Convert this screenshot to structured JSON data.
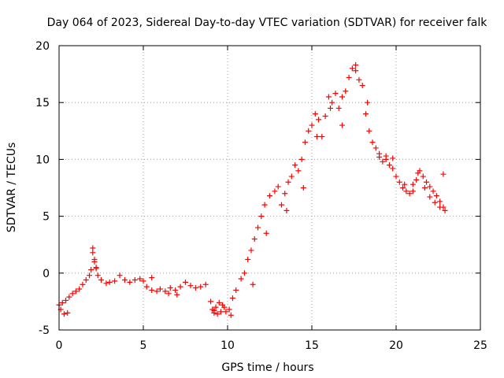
{
  "chart_data": {
    "type": "scatter",
    "title": "Day 064 of 2023, Sidereal Day-to-day VTEC variation (SDTVAR) for receiver falk",
    "xlabel": "GPS time / hours",
    "ylabel": "SDTVAR / TECUs",
    "xlim": [
      0,
      25
    ],
    "ylim": [
      -5,
      20
    ],
    "xticks": [
      0,
      5,
      10,
      15,
      20,
      25
    ],
    "yticks": [
      -5,
      0,
      5,
      10,
      15,
      20
    ],
    "grid": true,
    "marker": "+",
    "series": [
      {
        "name": "SDTVAR",
        "color": "#ff0000",
        "x": [
          0.0,
          0.2,
          0.4,
          0.6,
          0.8,
          1.0,
          1.2,
          1.4,
          1.6,
          1.8,
          1.9,
          2.0,
          2.1,
          2.2,
          2.3,
          2.5,
          2.8,
          3.0,
          3.3,
          3.6,
          3.9,
          4.2,
          4.5,
          4.8,
          5.0,
          5.2,
          5.5,
          5.8,
          6.0,
          6.3,
          6.6,
          6.9,
          7.2,
          7.5,
          7.8,
          8.1,
          8.4,
          8.7,
          9.0,
          9.1,
          9.2,
          9.3,
          9.5,
          9.7,
          9.9,
          10.1,
          10.3,
          10.5,
          10.8,
          11.0,
          11.2,
          11.4,
          11.6,
          11.8,
          12.0,
          12.2,
          12.5,
          12.8,
          13.0,
          13.2,
          13.4,
          13.6,
          13.8,
          14.0,
          14.2,
          14.4,
          14.6,
          14.8,
          15.0,
          15.2,
          15.4,
          15.6,
          15.8,
          16.0,
          16.2,
          16.4,
          16.6,
          16.8,
          17.0,
          17.2,
          17.4,
          17.6,
          17.8,
          18.0,
          18.2,
          18.4,
          18.6,
          18.8,
          19.0,
          19.2,
          19.4,
          19.6,
          19.8,
          20.0,
          20.2,
          20.4,
          20.6,
          20.8,
          21.0,
          21.2,
          21.4,
          21.6,
          21.8,
          22.0,
          22.2,
          22.4,
          22.6,
          22.8,
          22.9,
          0.1,
          0.3,
          0.5,
          2.0,
          2.1,
          2.2,
          5.5,
          6.5,
          7.0,
          9.2,
          9.4,
          9.6,
          9.8,
          10.2,
          11.5,
          12.3,
          13.5,
          14.5,
          15.3,
          16.1,
          16.8,
          17.6,
          18.3,
          19.0,
          19.4,
          19.8,
          20.5,
          21.0,
          21.3,
          21.7,
          22.0,
          22.3,
          22.6,
          22.8
        ],
        "y": [
          -2.8,
          -2.6,
          -2.4,
          -2.1,
          -1.8,
          -1.6,
          -1.4,
          -1.0,
          -0.6,
          -0.2,
          0.3,
          1.8,
          1.2,
          0.4,
          -0.2,
          -0.6,
          -0.9,
          -0.8,
          -0.7,
          -0.2,
          -0.6,
          -0.8,
          -0.6,
          -0.5,
          -0.7,
          -1.2,
          -1.5,
          -1.6,
          -1.4,
          -1.6,
          -1.3,
          -1.5,
          -1.2,
          -0.8,
          -1.1,
          -1.3,
          -1.2,
          -1.0,
          -2.5,
          -3.2,
          -3.5,
          -3.0,
          -2.6,
          -2.8,
          -3.4,
          -3.2,
          -2.2,
          -1.5,
          -0.5,
          0.0,
          1.2,
          2.0,
          3.0,
          4.0,
          5.0,
          6.0,
          6.8,
          7.2,
          7.6,
          6.0,
          7.0,
          8.0,
          8.5,
          9.5,
          9.0,
          10.0,
          11.5,
          12.5,
          13.0,
          14.0,
          13.5,
          12.0,
          13.8,
          15.5,
          15.0,
          15.8,
          14.5,
          15.5,
          16.0,
          17.2,
          18.0,
          17.8,
          17.0,
          16.5,
          14.0,
          12.5,
          11.5,
          11.0,
          10.2,
          9.8,
          10.0,
          9.5,
          9.2,
          8.5,
          8.0,
          7.5,
          7.2,
          7.0,
          7.8,
          8.2,
          9.0,
          8.5,
          8.0,
          7.6,
          7.2,
          6.8,
          6.3,
          5.8,
          5.5,
          -3.2,
          -3.6,
          -3.5,
          2.2,
          1.0,
          0.5,
          -0.4,
          -1.8,
          -1.9,
          -3.3,
          -3.6,
          -3.4,
          -3.0,
          -3.7,
          -1.0,
          3.5,
          5.5,
          7.5,
          12.0,
          14.5,
          13.0,
          18.3,
          15.0,
          10.5,
          10.3,
          10.1,
          7.8,
          7.2,
          8.8,
          7.5,
          6.7,
          6.2,
          5.8,
          8.7
        ]
      }
    ]
  }
}
